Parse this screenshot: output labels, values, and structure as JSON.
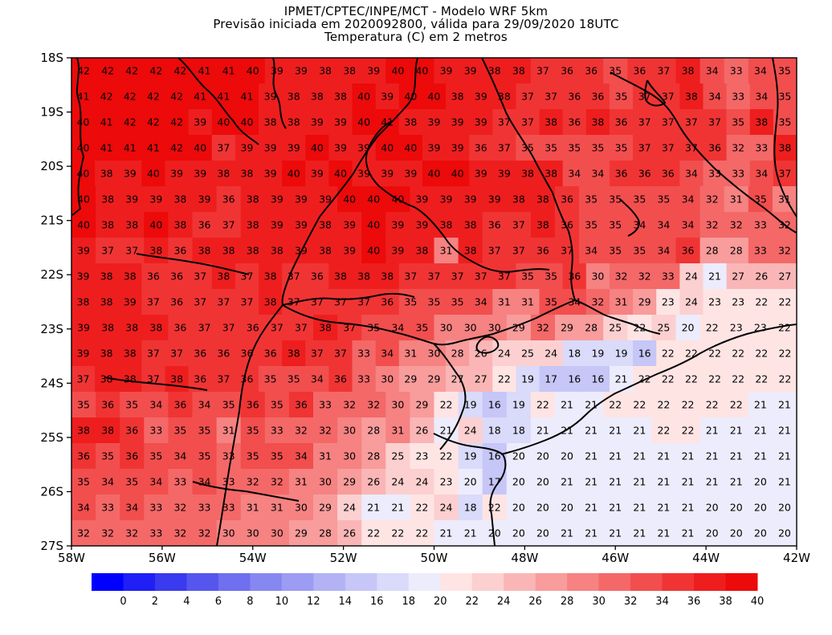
{
  "header": {
    "line1": "IPMET/CPTEC/INPE/MCT - Modelo WRF 5km",
    "line2": "Previsão iniciada em 2020092800, válida para 29/09/2020 18UTC",
    "line3": "Temperatura (C) em 2 metros"
  },
  "chart_data": {
    "type": "heatmap",
    "title": "IPMET/CPTEC/INPE/MCT - Modelo WRF 5km",
    "subtitle": "Temperatura (C) em 2 metros",
    "x_ticks": [
      "58W",
      "56W",
      "54W",
      "52W",
      "50W",
      "48W",
      "46W",
      "44W",
      "42W"
    ],
    "y_ticks": [
      "18S",
      "19S",
      "20S",
      "21S",
      "22S",
      "23S",
      "24S",
      "25S",
      "26S",
      "27S"
    ],
    "lon_range": [
      -58,
      -42
    ],
    "lat_range": [
      -27,
      -18
    ],
    "colorbar": {
      "labels": [
        "0",
        "2",
        "4",
        "6",
        "8",
        "10",
        "12",
        "14",
        "16",
        "18",
        "20",
        "22",
        "24",
        "26",
        "28",
        "30",
        "32",
        "34",
        "36",
        "38",
        "40"
      ],
      "colors": [
        "#0000ff",
        "#1f1ff6",
        "#3a3aee",
        "#5656ee",
        "#6f6fef",
        "#8787f1",
        "#9c9cf3",
        "#b2b2f5",
        "#c6c6f7",
        "#dadafa",
        "#ececfc",
        "#ffe4e4",
        "#fcd0d0",
        "#fab6b6",
        "#f89c9c",
        "#f68282",
        "#f46868",
        "#f24e4e",
        "#f03434",
        "#ee1e1e",
        "#ec0a0a"
      ]
    },
    "rows": [
      "42 42 42 42 42 41 41 40 39 39 38 38 39 40 40 39 39 38 38 37 36 36 35 36 37 38 34 33 34 35",
      "41 42 42 42 42 41 41 41 39 38 38 38 40 39 40 40 38 39 38 37 37 36 36 35 37 37 38 34 33 34 35",
      "40 41 42 42 42 39 40 40 38 38 39 39 40 41 38 39 39 39 37 37 38 36 38 36 37 37 37 37 35 38 35",
      "40 41 41 41 42 40 37 39 39 39 40 39 39 40 40 39 39 36 37 35 35 35 35 35 37 37 37 36 32 33 38",
      "40 38 39 40 39 39 38 38 39 40 39 40 39 39 39 40 40 39 39 38 38 34 34 36 36 36 34 33 33 34 37",
      "40 38 39 39 38 39 36 38 39 39 39 40 40 40 39 39 39 39 38 38 36 35 35 35 35 34 32 31 35 31",
      "40 38 38 40 38 36 37 38 39 39 38 39 40 39 39 38 38 36 37 38 36 35 35 34 34 34 32 32 33 32",
      "39 37 37 38 36 38 38 38 38 39 38 39 40 39 38 31 38 37 37 36 37 34 35 35 34 36 28 28 33 32",
      "39 38 38 36 36 37 38 37 38 37 36 38 38 38 37 37 37 37 37 35 35 36 30 32 32 33 24 21 27 26 27",
      "38 38 39 37 36 37 37 37 38 37 37 37 37 36 35 35 35 34 31 31 35 34 32 31 29 23 24 23 23 22 22",
      "39 38 38 38 36 37 37 36 37 37 38 37 35 34 35 30 30 30 29 32 29 28 25 22 25 20 22 23 23 22",
      "39 38 38 37 37 36 36 36 36 38 37 37 33 34 31 30 28 26 24 25 24 18 19 19 16 22 22 22 22 22 22",
      "37 38 38 37 38 36 37 36 35 35 34 36 33 30 29 29 27 27 22 19 17 16 16 21 22 22 22 22 22 22 22",
      "35 36 35 34 36 34 35 36 35 36 33 32 32 30 29 22 19 16 19 22 21 21 22 22 22 22 22 22 21 21",
      "38 38 36 33 35 35 31 35 33 32 32 30 28 31 26 21 24 18 18 21 21 21 21 21 22 22 21 21 21 21",
      "36 35 36 35 34 35 33 35 35 34 31 30 28 25 23 22 19 16 20 20 20 21 21 21 21 21 21 21 21 21",
      "35 34 35 34 33 34 33 32 32 31 30 29 26 24 24 23 20 17 20 20 21 21 21 21 21 21 21 21 20 21",
      "34 33 34 33 32 33 33 31 31 30 29 24 21 21 22 24 18 22 20 20 20 21 21 21 21 21 20 20 20 20",
      "32 32 32 33 32 32 30 30 30 29 28 26 22 22 22 21 21 20 20 20 21 21 21 21 21 21 20 20 20 20"
    ],
    "xlabel": "",
    "ylabel": "",
    "grid": false,
    "colorbar_placement": "bottom"
  }
}
